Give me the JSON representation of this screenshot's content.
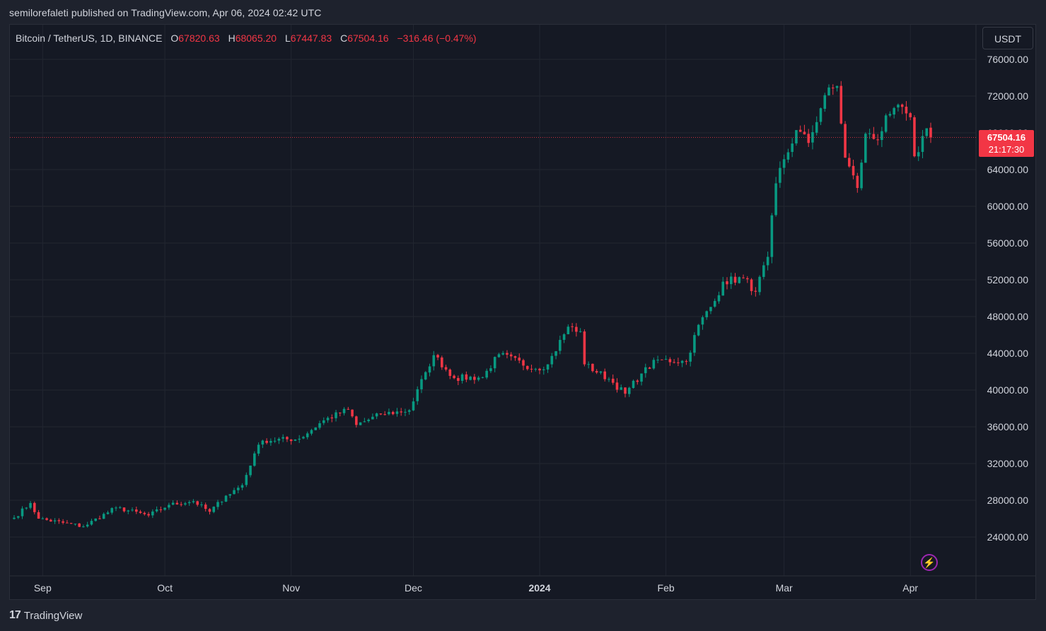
{
  "header": {
    "published_line": "semilorefaleti published on TradingView.com, Apr 06, 2024 02:42 UTC"
  },
  "legend": {
    "symbol": "Bitcoin / TetherUS, 1D, BINANCE",
    "o_label": "O",
    "o_value": "67820.63",
    "h_label": "H",
    "h_value": "68065.20",
    "l_label": "L",
    "l_value": "67447.83",
    "c_label": "C",
    "c_value": "67504.16",
    "change": "−316.46 (−0.47%)"
  },
  "currency_button": "USDT",
  "last_price": {
    "price": "67504.16",
    "countdown": "21:17:30"
  },
  "footer": {
    "brand": "TradingView"
  },
  "colors": {
    "up": "#089981",
    "down": "#f23645",
    "background": "#151924",
    "grid": "#222631",
    "text": "#d1d4dc",
    "accent": "#9c27b0"
  },
  "icons": {
    "bolt": "lightning-icon",
    "logo": "tradingview-logo-icon"
  },
  "chart_data": {
    "type": "candlestick",
    "title": "Bitcoin / TetherUS, 1D, BINANCE",
    "ylim": [
      20000,
      78000
    ],
    "y_ticks": [
      "76000.00",
      "72000.00",
      "68000.00",
      "64000.00",
      "60000.00",
      "56000.00",
      "52000.00",
      "48000.00",
      "44000.00",
      "40000.00",
      "36000.00",
      "32000.00",
      "28000.00",
      "24000.00"
    ],
    "x_ticks": [
      {
        "label": "Sep",
        "date": "2023-09-01",
        "bold": false
      },
      {
        "label": "Oct",
        "date": "2023-10-01",
        "bold": false
      },
      {
        "label": "Nov",
        "date": "2023-11-01",
        "bold": false
      },
      {
        "label": "Dec",
        "date": "2023-12-01",
        "bold": false
      },
      {
        "label": "2024",
        "date": "2024-01-01",
        "bold": true
      },
      {
        "label": "Feb",
        "date": "2024-02-01",
        "bold": false
      },
      {
        "label": "Mar",
        "date": "2024-03-01",
        "bold": false
      },
      {
        "label": "Apr",
        "date": "2024-04-01",
        "bold": false
      }
    ],
    "first_date": "2023-08-25",
    "last_date": "2024-04-06",
    "grid": true,
    "last_price_line": 67504.16,
    "key_closes": [
      [
        "2023-08-25",
        26100
      ],
      [
        "2023-08-29",
        27700
      ],
      [
        "2023-08-31",
        26000
      ],
      [
        "2023-09-11",
        25150
      ],
      [
        "2023-09-19",
        27200
      ],
      [
        "2023-09-27",
        26350
      ],
      [
        "2023-10-02",
        27500
      ],
      [
        "2023-10-08",
        27900
      ],
      [
        "2023-10-12",
        26750
      ],
      [
        "2023-10-16",
        28500
      ],
      [
        "2023-10-20",
        29650
      ],
      [
        "2023-10-23",
        33100
      ],
      [
        "2023-10-25",
        34500
      ],
      [
        "2023-11-03",
        34700
      ],
      [
        "2023-11-09",
        36700
      ],
      [
        "2023-11-15",
        37900
      ],
      [
        "2023-11-17",
        36200
      ],
      [
        "2023-11-23",
        37350
      ],
      [
        "2023-11-30",
        37800
      ],
      [
        "2023-12-04",
        41950
      ],
      [
        "2023-12-06",
        43800
      ],
      [
        "2023-12-11",
        41300
      ],
      [
        "2023-12-18",
        41400
      ],
      [
        "2023-12-22",
        43900
      ],
      [
        "2023-12-31",
        42300
      ],
      [
        "2024-01-03",
        42800
      ],
      [
        "2024-01-08",
        46900
      ],
      [
        "2024-01-11",
        46400
      ],
      [
        "2024-01-12",
        42800
      ],
      [
        "2024-01-18",
        41200
      ],
      [
        "2024-01-22",
        39600
      ],
      [
        "2024-01-26",
        41800
      ],
      [
        "2024-01-30",
        43300
      ],
      [
        "2024-02-06",
        43100
      ],
      [
        "2024-02-09",
        47100
      ],
      [
        "2024-02-13",
        49700
      ],
      [
        "2024-02-15",
        51800
      ],
      [
        "2024-02-20",
        52200
      ],
      [
        "2024-02-23",
        50700
      ],
      [
        "2024-02-26",
        54500
      ],
      [
        "2024-02-28",
        62500
      ],
      [
        "2024-03-04",
        68300
      ],
      [
        "2024-03-07",
        66900
      ],
      [
        "2024-03-11",
        72100
      ],
      [
        "2024-03-14",
        73100
      ],
      [
        "2024-03-16",
        65300
      ],
      [
        "2024-03-19",
        62000
      ],
      [
        "2024-03-21",
        67900
      ],
      [
        "2024-03-24",
        67200
      ],
      [
        "2024-03-26",
        69900
      ],
      [
        "2024-03-28",
        70700
      ],
      [
        "2024-04-01",
        69700
      ],
      [
        "2024-04-02",
        65450
      ],
      [
        "2024-04-03",
        65900
      ],
      [
        "2024-04-05",
        68500
      ],
      [
        "2024-04-06",
        67504
      ]
    ]
  }
}
